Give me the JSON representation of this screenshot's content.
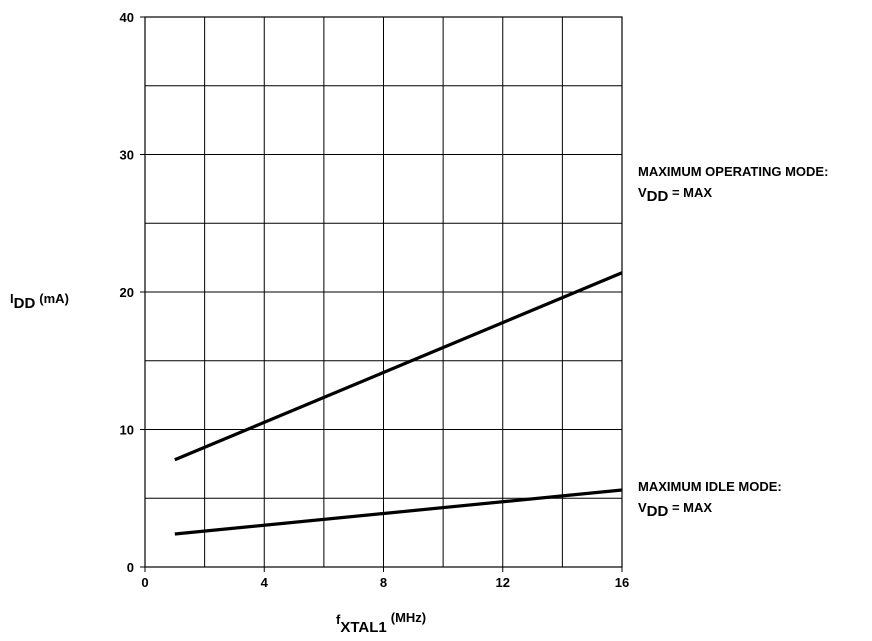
{
  "chart_data": {
    "type": "line",
    "title": "",
    "x_label": {
      "main": "f",
      "sub": "XTAL1",
      "unit": "(MHz)"
    },
    "y_label": {
      "main": "I",
      "sub": "DD",
      "unit": "(mA)"
    },
    "xlim": [
      0,
      16
    ],
    "ylim": [
      0,
      40
    ],
    "x_ticks": [
      0,
      4,
      8,
      12,
      16
    ],
    "x_tick_labels": [
      "0",
      "4",
      "8",
      "12",
      "16"
    ],
    "x_grid_step": 2,
    "y_ticks": [
      0,
      10,
      20,
      30,
      40
    ],
    "y_tick_labels": [
      "0",
      "10",
      "20",
      "30",
      "40"
    ],
    "y_grid_step": 5,
    "grid": true,
    "series": [
      {
        "name": "MAXIMUM OPERATING MODE",
        "condition": {
          "main": "V",
          "sub": "DD",
          "rest": " = MAX"
        },
        "x": [
          1,
          16
        ],
        "y": [
          7.8,
          21.4
        ],
        "color": "#000000"
      },
      {
        "name": "MAXIMUM IDLE MODE",
        "condition": {
          "main": "V",
          "sub": "DD",
          "rest": " = MAX"
        },
        "x": [
          1,
          16
        ],
        "y": [
          2.4,
          5.6
        ],
        "color": "#000000"
      }
    ]
  }
}
